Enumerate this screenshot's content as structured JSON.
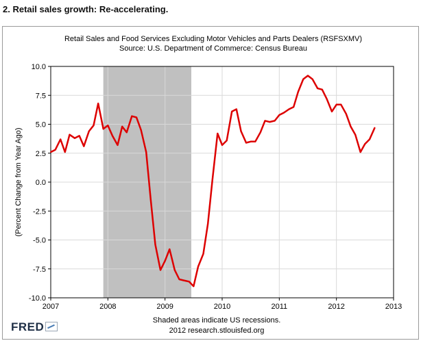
{
  "heading": "2. Retail sales growth: Re-accelerating.",
  "footer": {
    "note": "Shaded areas indicate US recessions.",
    "credit": "2012 research.stlouisfed.org",
    "logo": "FRED"
  },
  "colors": {
    "series": "#dd0000",
    "recession": "#c0c0c0",
    "grid": "#d9d9d9",
    "axis": "#000000"
  },
  "chart_data": {
    "type": "line",
    "title": "Retail Sales and Food Services Excluding Motor Vehicles and Parts Dealers (RSFSXMV)",
    "subtitle": "Source: U.S. Department of Commerce: Census Bureau",
    "xlabel": "",
    "ylabel": "(Percent Change from Year Ago)",
    "xlim": [
      2007.0,
      2013.0
    ],
    "ylim": [
      -10.0,
      10.0
    ],
    "x_ticks": [
      "2007",
      "2008",
      "2009",
      "2010",
      "2011",
      "2012",
      "2013"
    ],
    "y_ticks": [
      "10.0",
      "7.5",
      "5.0",
      "2.5",
      "0.0",
      "-2.5",
      "-5.0",
      "-7.5",
      "-10.0"
    ],
    "grid": true,
    "legend": "none",
    "recessions": [
      [
        2007.92,
        2009.46
      ]
    ],
    "series": [
      {
        "name": "",
        "x": [
          2007.0,
          2007.08,
          2007.17,
          2007.25,
          2007.33,
          2007.42,
          2007.5,
          2007.58,
          2007.67,
          2007.75,
          2007.83,
          2007.92,
          2008.0,
          2008.08,
          2008.17,
          2008.25,
          2008.33,
          2008.42,
          2008.5,
          2008.58,
          2008.67,
          2008.75,
          2008.83,
          2008.92,
          2009.0,
          2009.08,
          2009.17,
          2009.25,
          2009.33,
          2009.42,
          2009.5,
          2009.58,
          2009.67,
          2009.75,
          2009.83,
          2009.92,
          2010.0,
          2010.08,
          2010.17,
          2010.25,
          2010.33,
          2010.42,
          2010.5,
          2010.58,
          2010.67,
          2010.75,
          2010.83,
          2010.92,
          2011.0,
          2011.08,
          2011.17,
          2011.25,
          2011.33,
          2011.42,
          2011.5,
          2011.58,
          2011.67,
          2011.75,
          2011.83,
          2011.92,
          2012.0,
          2012.08,
          2012.17,
          2012.25,
          2012.33,
          2012.42,
          2012.5,
          2012.58,
          2012.67
        ],
        "y": [
          2.6,
          2.8,
          3.7,
          2.6,
          4.1,
          3.8,
          4.0,
          3.1,
          4.4,
          4.9,
          6.8,
          4.6,
          4.9,
          4.0,
          3.2,
          4.8,
          4.3,
          5.7,
          5.6,
          4.5,
          2.6,
          -1.5,
          -5.4,
          -7.6,
          -6.8,
          -5.8,
          -7.6,
          -8.4,
          -8.5,
          -8.6,
          -9.0,
          -7.3,
          -6.2,
          -3.6,
          0.2,
          4.2,
          3.2,
          3.6,
          6.1,
          6.3,
          4.4,
          3.4,
          3.5,
          3.5,
          4.3,
          5.3,
          5.2,
          5.3,
          5.8,
          6.0,
          6.3,
          6.5,
          7.8,
          8.9,
          9.2,
          8.9,
          8.1,
          8.0,
          7.2,
          6.1,
          6.7,
          6.7,
          5.9,
          4.8,
          4.1,
          2.6,
          3.3,
          3.7,
          4.7
        ]
      }
    ]
  }
}
